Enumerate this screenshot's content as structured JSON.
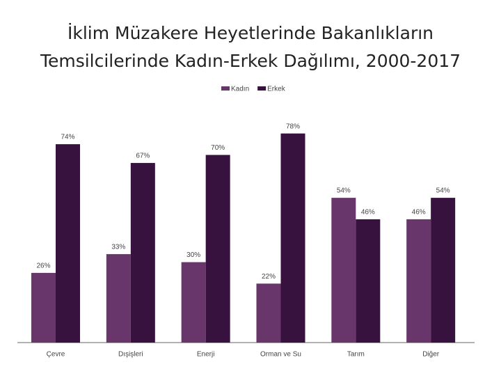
{
  "chart_data": {
    "type": "bar",
    "title": "İklim Müzakere Heyetlerinde Bakanlıkların Temsilcilerinde Kadın-Erkek Dağılımı, 2000-2017",
    "categories": [
      "Çevre",
      "Dışişleri",
      "Enerji",
      "Orman ve Su",
      "Tarım",
      "Diğer"
    ],
    "series": [
      {
        "name": "Kadın",
        "color": "#68366a",
        "values": [
          26,
          33,
          30,
          22,
          54,
          46
        ],
        "value_labels": [
          "26%",
          "33%",
          "30%",
          "22%",
          "54%",
          "46%"
        ]
      },
      {
        "name": "Erkek",
        "color": "#37123f",
        "values": [
          74,
          67,
          70,
          78,
          46,
          54
        ],
        "value_labels": [
          "74%",
          "67%",
          "70%",
          "78%",
          "46%",
          "54%"
        ]
      }
    ],
    "legend": "top"
  }
}
